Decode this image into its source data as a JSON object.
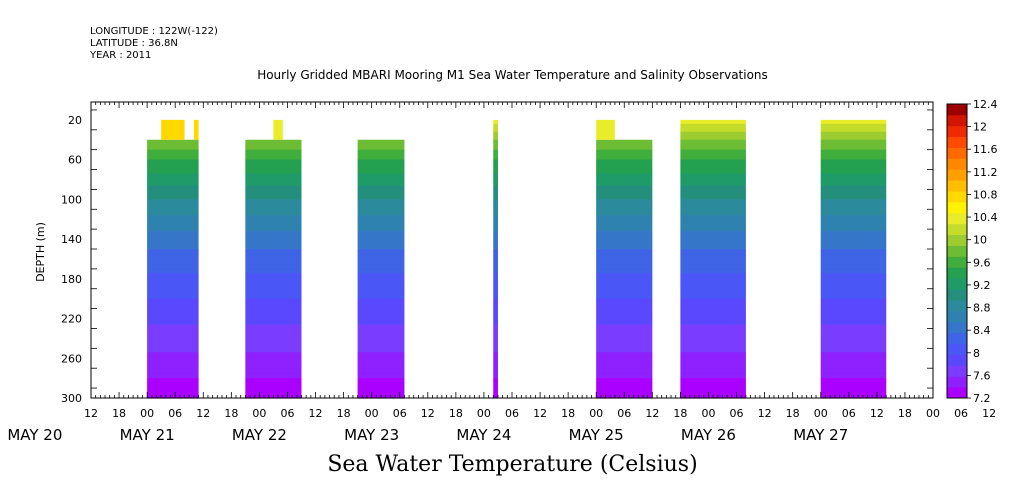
{
  "header": {
    "longitude": "LONGITUDE : 122W(-122)",
    "latitude": "LATITUDE : 36.8N",
    "year": "YEAR : 2011"
  },
  "chart_data": {
    "type": "heatmap",
    "title": "Hourly Gridded MBARI Mooring M1 Sea Water Temperature and Salinity Observations",
    "xlabel": "Sea Water Temperature (Celsius)",
    "ylabel": "DEPTH (m)",
    "x_start": "2011-05-20 12:00",
    "x_end": "2011-05-28 00:00",
    "x_hour_ticks": [
      "12",
      "18",
      "00",
      "06",
      "12",
      "18",
      "00",
      "06",
      "12",
      "18",
      "00",
      "06",
      "12",
      "18",
      "00",
      "06",
      "12",
      "18",
      "00",
      "06",
      "12",
      "18",
      "00",
      "06",
      "12",
      "18",
      "00",
      "06",
      "12",
      "18",
      "00",
      "06",
      "12"
    ],
    "x_day_labels": [
      {
        "label": "MAY 20",
        "date": "2011-05-20"
      },
      {
        "label": "MAY 21",
        "date": "2011-05-21"
      },
      {
        "label": "MAY 22",
        "date": "2011-05-22"
      },
      {
        "label": "MAY 23",
        "date": "2011-05-23"
      },
      {
        "label": "MAY 24",
        "date": "2011-05-24"
      },
      {
        "label": "MAY 25",
        "date": "2011-05-25"
      },
      {
        "label": "MAY 26",
        "date": "2011-05-26"
      },
      {
        "label": "MAY 27",
        "date": "2011-05-27"
      }
    ],
    "y_ticks": [
      20,
      60,
      100,
      140,
      180,
      220,
      260,
      300
    ],
    "ylim": [
      300,
      2
    ],
    "colorbar": {
      "labels": [
        "12.4",
        "12",
        "11.6",
        "11.2",
        "10.8",
        "10.4",
        "10",
        "9.6",
        "9.2",
        "8.8",
        "8.4",
        "8",
        "7.6",
        "7.2"
      ],
      "levels": [
        7.2,
        7.4,
        7.6,
        7.8,
        8.0,
        8.2,
        8.4,
        8.6,
        8.8,
        9.0,
        9.2,
        9.4,
        9.6,
        9.8,
        10.0,
        10.2,
        10.4,
        10.6,
        10.8,
        11.0,
        11.2,
        11.4,
        11.6,
        11.8,
        12.0,
        12.2,
        12.4
      ],
      "colors": [
        "#aa00ff",
        "#8f20ff",
        "#7a3cff",
        "#5a48ff",
        "#4a56f5",
        "#3f64e6",
        "#3676c8",
        "#2f82b0",
        "#2b8a9c",
        "#238f7c",
        "#1f9b6a",
        "#23a050",
        "#3fae3c",
        "#6cbc34",
        "#9ccc30",
        "#c4dc2a",
        "#e8ec2a",
        "#fff200",
        "#ffd800",
        "#ffbe00",
        "#ffa000",
        "#ff8800",
        "#ff6a00",
        "#ff4a00",
        "#f02a00",
        "#d21400",
        "#9c0000"
      ]
    },
    "data_blocks": [
      {
        "start": "2011-05-21 00:00",
        "end": "2011-05-21 11:00",
        "top_depth": 40,
        "surface": [
          {
            "start": "2011-05-21 03:00",
            "end": "2011-05-21 08:00",
            "depth": 20,
            "temp": 10.9
          },
          {
            "start": "2011-05-21 10:00",
            "end": "2011-05-21 11:00",
            "depth": 20,
            "temp": 10.9
          }
        ]
      },
      {
        "start": "2011-05-21 21:00",
        "end": "2011-05-22 09:00",
        "top_depth": 40,
        "surface": [
          {
            "start": "2011-05-22 03:00",
            "end": "2011-05-22 05:00",
            "depth": 20,
            "temp": 10.4
          }
        ]
      },
      {
        "start": "2011-05-22 21:00",
        "end": "2011-05-23 07:00",
        "top_depth": 40,
        "surface": []
      },
      {
        "start": "2011-05-24 02:00",
        "end": "2011-05-24 03:00",
        "top_depth": 20,
        "surface": []
      },
      {
        "start": "2011-05-25 00:00",
        "end": "2011-05-25 12:00",
        "top_depth": 40,
        "surface": [
          {
            "start": "2011-05-25 00:00",
            "end": "2011-05-25 04:00",
            "depth": 20,
            "temp": 10.4
          }
        ]
      },
      {
        "start": "2011-05-25 18:00",
        "end": "2011-05-26 08:00",
        "top_depth": 20,
        "surface": []
      },
      {
        "start": "2011-05-27 00:00",
        "end": "2011-05-27 14:00",
        "top_depth": 20,
        "surface": []
      }
    ],
    "temperature_profile": [
      {
        "depth": 20,
        "temp": 10.5
      },
      {
        "depth": 40,
        "temp": 10.0
      },
      {
        "depth": 60,
        "temp": 9.6
      },
      {
        "depth": 80,
        "temp": 9.3
      },
      {
        "depth": 100,
        "temp": 9.0
      },
      {
        "depth": 120,
        "temp": 8.75
      },
      {
        "depth": 140,
        "temp": 8.5
      },
      {
        "depth": 160,
        "temp": 8.3
      },
      {
        "depth": 180,
        "temp": 8.15
      },
      {
        "depth": 200,
        "temp": 8.0
      },
      {
        "depth": 220,
        "temp": 7.85
      },
      {
        "depth": 240,
        "temp": 7.7
      },
      {
        "depth": 260,
        "temp": 7.55
      },
      {
        "depth": 280,
        "temp": 7.4
      },
      {
        "depth": 300,
        "temp": 7.25
      }
    ]
  }
}
